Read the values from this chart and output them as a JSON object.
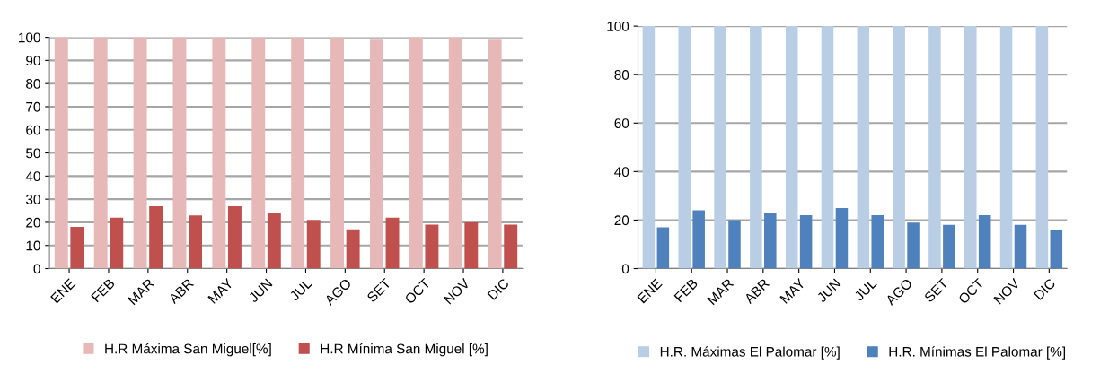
{
  "chart_data": [
    {
      "type": "bar",
      "categories": [
        "ENE",
        "FEB",
        "MAR",
        "ABR",
        "MAY",
        "JUN",
        "JUL",
        "AGO",
        "SET",
        "OCT",
        "NOV",
        "DIC"
      ],
      "series": [
        {
          "name": "H.R Máxima San Miguel[%]",
          "color": "#e6b9b8",
          "values": [
            100,
            100,
            100,
            100,
            100,
            100,
            100,
            100,
            99,
            100,
            100,
            99
          ]
        },
        {
          "name": "H.R Mínima San Miguel [%]",
          "color": "#c0504d",
          "values": [
            18,
            22,
            27,
            23,
            27,
            24,
            21,
            17,
            22,
            19,
            20,
            19
          ]
        }
      ],
      "ylim": [
        0,
        100
      ],
      "yticks": [
        0,
        10,
        20,
        30,
        40,
        50,
        60,
        70,
        80,
        90,
        100
      ],
      "grid": "y",
      "legend": "bottom"
    },
    {
      "type": "bar",
      "categories": [
        "ENE",
        "FEB",
        "MAR",
        "ABR",
        "MAY",
        "JUN",
        "JUL",
        "AGO",
        "SET",
        "OCT",
        "NOV",
        "DIC"
      ],
      "series": [
        {
          "name": "H.R. Máximas El Palomar [%]",
          "color": "#b9cde5",
          "values": [
            100,
            100,
            100,
            100,
            100,
            100,
            100,
            100,
            100,
            100,
            100,
            100
          ]
        },
        {
          "name": "H.R. Mínimas El Palomar [%]",
          "color": "#4f81bd",
          "values": [
            17,
            24,
            20,
            23,
            22,
            25,
            22,
            19,
            18,
            22,
            18,
            16
          ]
        }
      ],
      "ylim": [
        0,
        100
      ],
      "yticks": [
        0,
        20,
        40,
        60,
        80,
        100
      ],
      "grid": "y",
      "legend": "bottom"
    }
  ]
}
